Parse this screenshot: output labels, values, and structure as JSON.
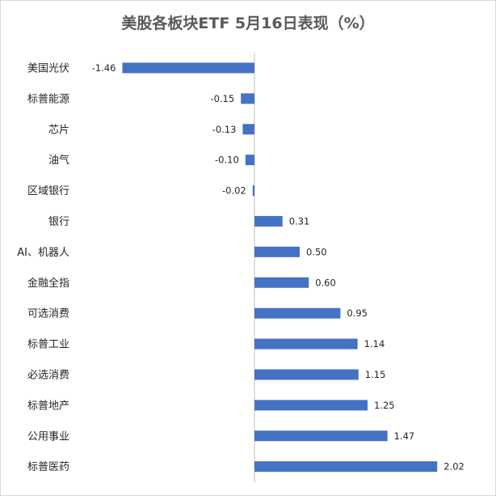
{
  "chart_data": {
    "type": "bar",
    "orientation": "horizontal",
    "title": "美股各板块ETF 5月16日表现（%）",
    "categories": [
      "美国光伏",
      "标普能源",
      "芯片",
      "油气",
      "区域银行",
      "银行",
      "AI、机器人",
      "金融全指",
      "可选消费",
      "标普工业",
      "必选消费",
      "标普地产",
      "公用事业",
      "标普医药"
    ],
    "values": [
      -1.46,
      -0.15,
      -0.13,
      -0.1,
      -0.02,
      0.31,
      0.5,
      0.6,
      0.95,
      1.14,
      1.15,
      1.25,
      1.47,
      2.02
    ],
    "value_labels": [
      "-1.46",
      "-0.15",
      "-0.13",
      "-0.10",
      "-0.02",
      "0.31",
      "0.50",
      "0.60",
      "0.95",
      "1.14",
      "1.15",
      "1.25",
      "1.47",
      "2.02"
    ],
    "xlim": [
      -1.5,
      2.5
    ],
    "bar_color": "#4472c4",
    "axis_color": "#bfbfbf",
    "grid": false,
    "legend": "none"
  }
}
